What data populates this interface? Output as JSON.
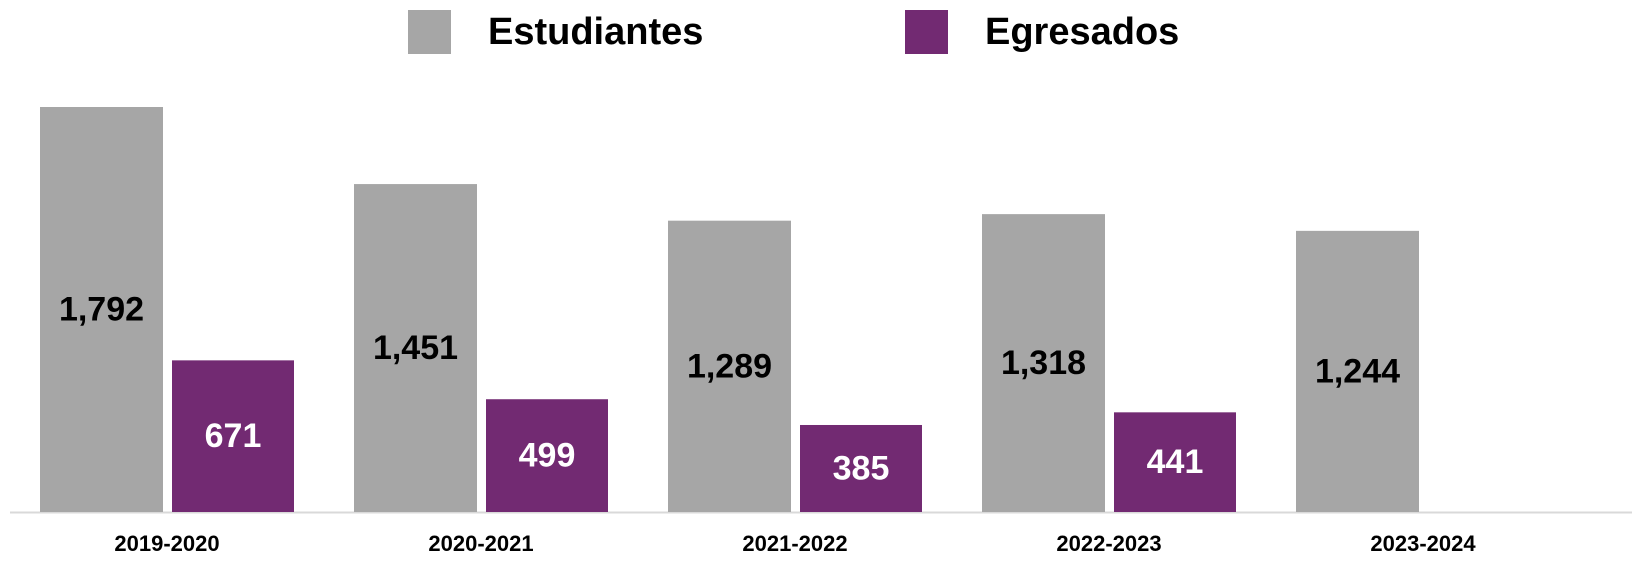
{
  "chart_data": {
    "type": "bar",
    "categories": [
      "2019-2020",
      "2020-2021",
      "2021-2022",
      "2022-2023",
      "2023-2024"
    ],
    "series": [
      {
        "name": "Estudiantes",
        "color": "#a6a6a6",
        "values": [
          1792,
          1451,
          1289,
          1318,
          1244
        ],
        "value_labels": [
          "1,792",
          "1,451",
          "1,289",
          "1,318",
          "1,244"
        ]
      },
      {
        "name": "Egresados",
        "color": "#722a72",
        "values": [
          671,
          499,
          385,
          441,
          null
        ]
      }
    ],
    "legend": "top"
  }
}
